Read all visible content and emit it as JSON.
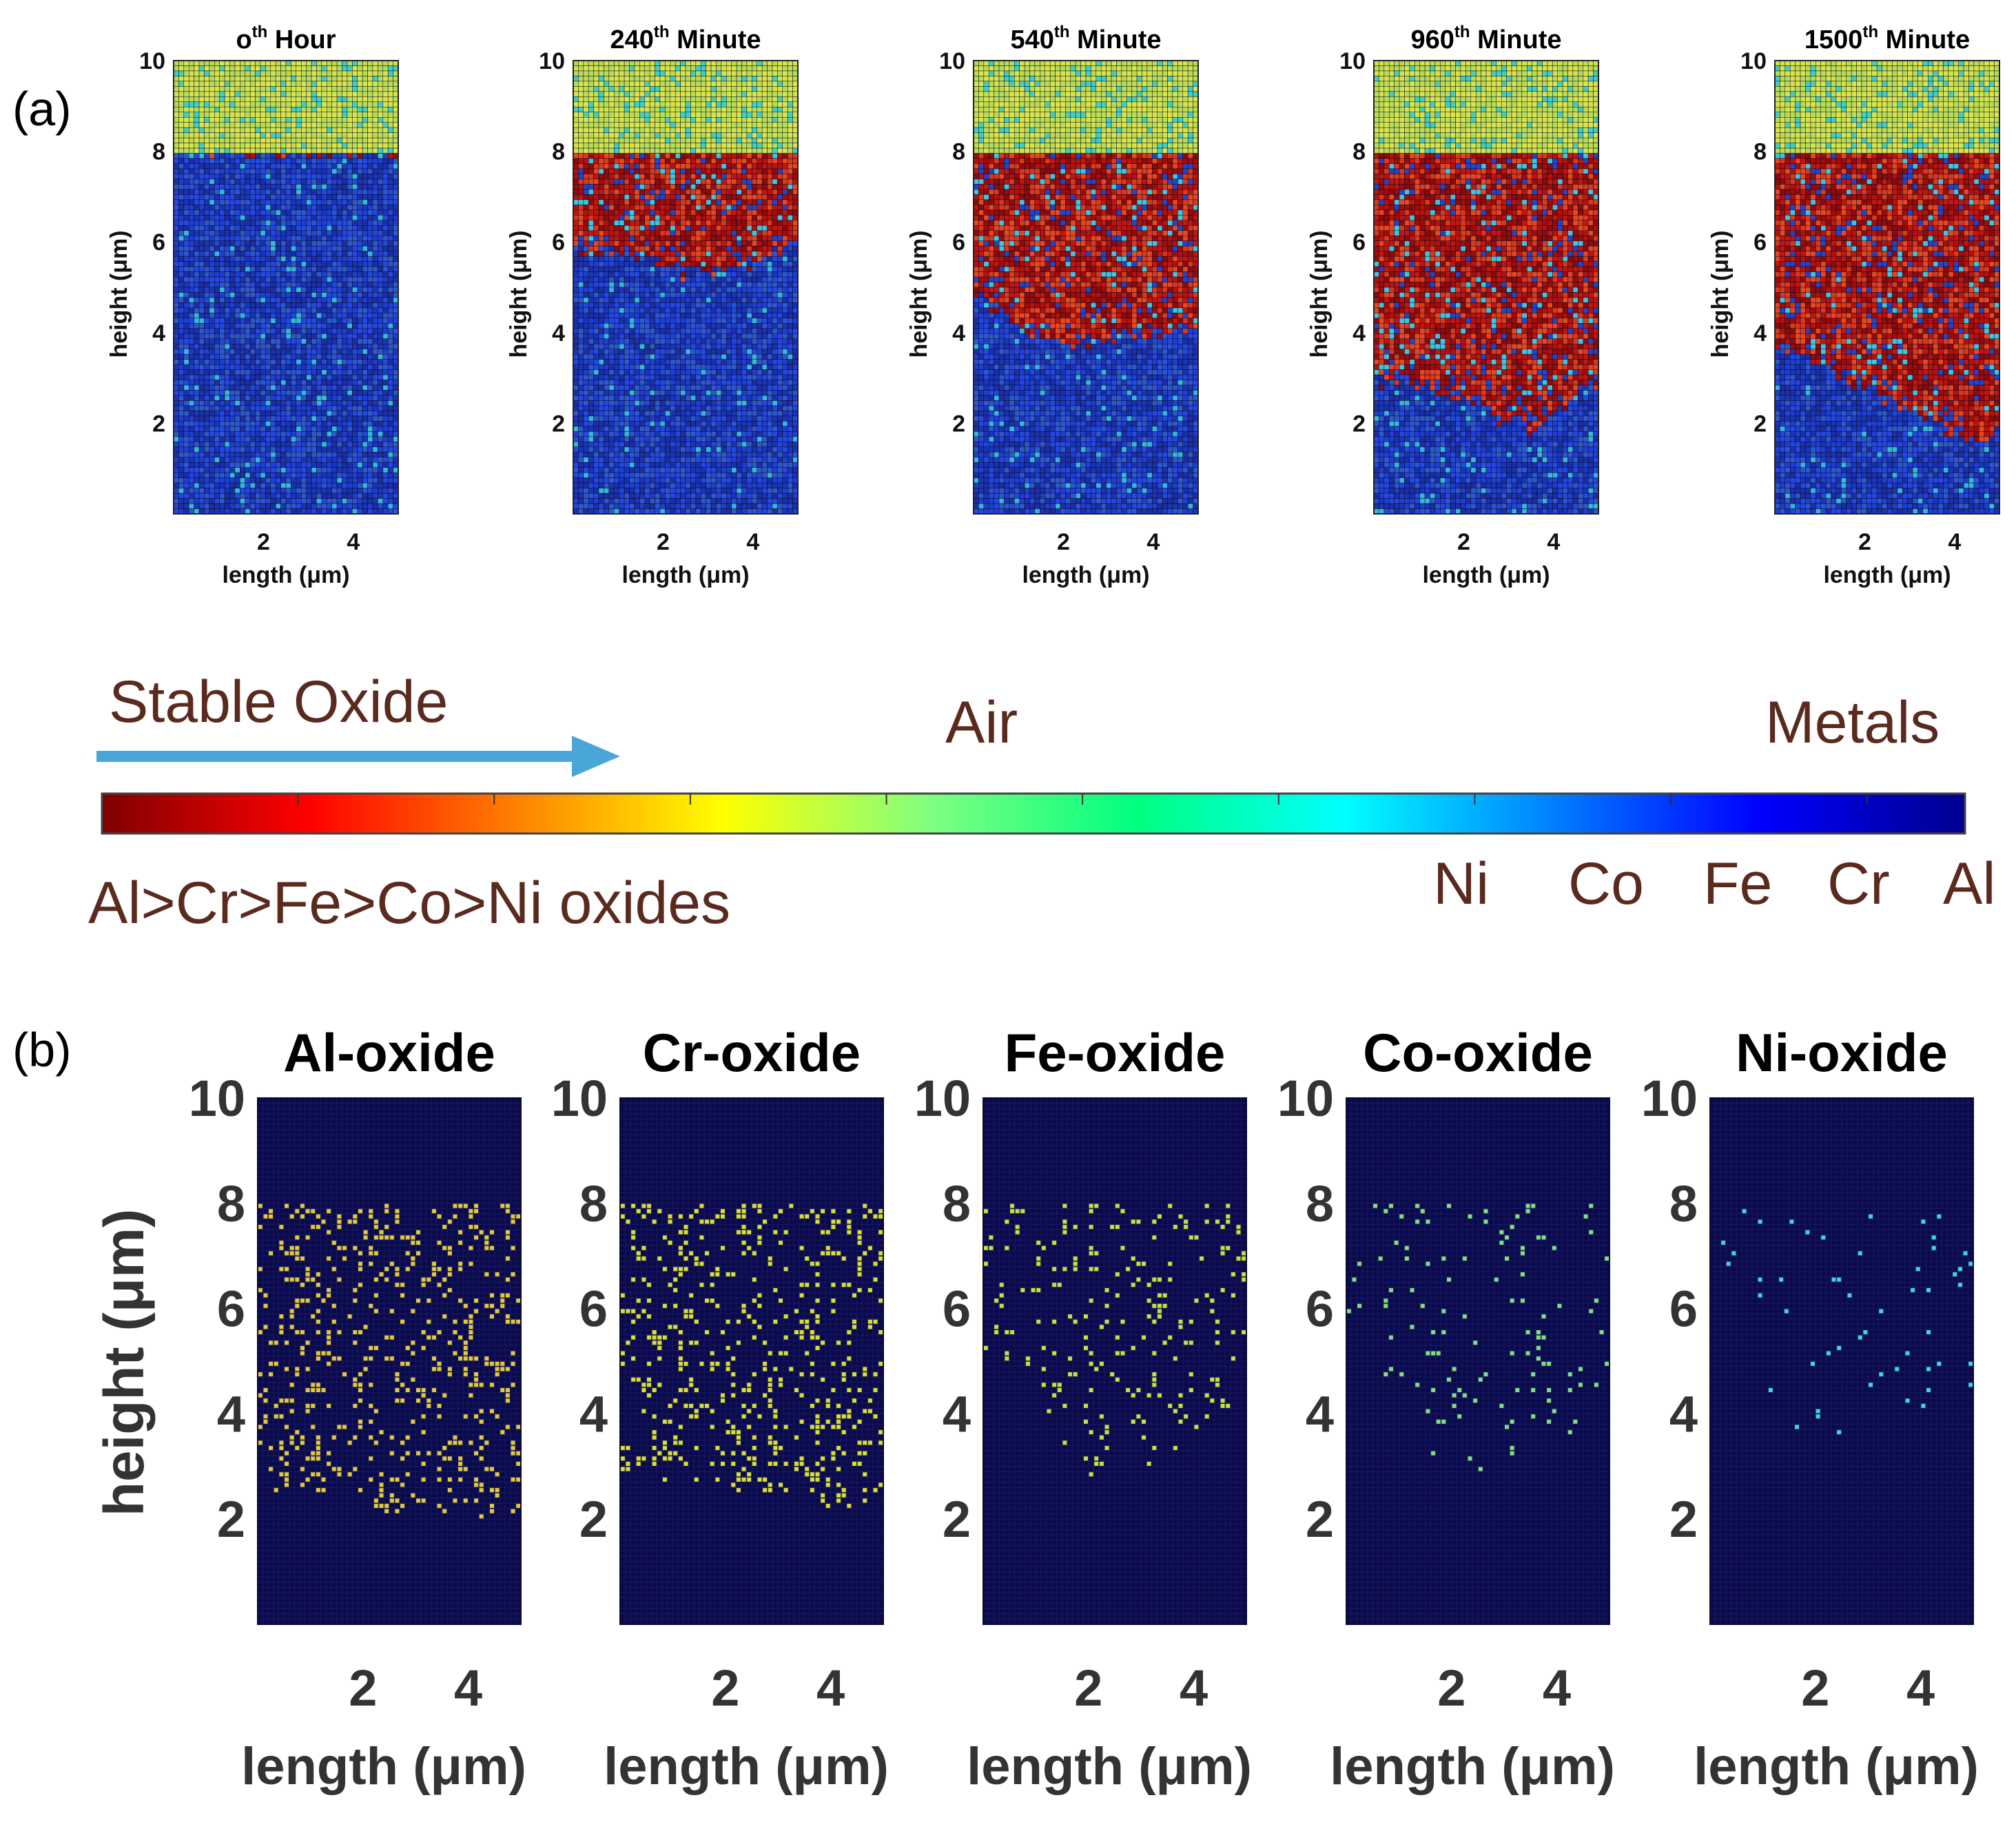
{
  "figure": {
    "panel_a_label": "(a)",
    "panel_b_label": "(b)"
  },
  "chart_data": [
    {
      "type": "heatmap",
      "panel": "a",
      "title_parts": [
        "o",
        "th",
        " Hour"
      ],
      "xlabel": "length (μm)",
      "ylabel": "height (μm)",
      "xlim": [
        0,
        5
      ],
      "ylim": [
        0,
        10
      ],
      "xticks": [
        2,
        4
      ],
      "yticks": [
        2,
        4,
        6,
        8,
        10
      ],
      "air_above": 8,
      "oxide_front": [
        8,
        8,
        8,
        8,
        8,
        8,
        8,
        8,
        8,
        8,
        8
      ]
    },
    {
      "type": "heatmap",
      "panel": "a",
      "title_parts": [
        "240",
        "th",
        " Minute"
      ],
      "xlabel": "length (μm)",
      "ylabel": "height (μm)",
      "xlim": [
        0,
        5
      ],
      "ylim": [
        0,
        10
      ],
      "xticks": [
        2,
        4
      ],
      "yticks": [
        2,
        4,
        6,
        8,
        10
      ],
      "air_above": 8,
      "oxide_front": [
        5.9,
        5.8,
        5.8,
        5.6,
        5.5,
        5.3,
        5.3,
        5.5,
        5.6,
        5.8,
        5.9
      ]
    },
    {
      "type": "heatmap",
      "panel": "a",
      "title_parts": [
        "540",
        "th",
        " Minute"
      ],
      "xlabel": "length (μm)",
      "ylabel": "height (μm)",
      "xlim": [
        0,
        5
      ],
      "ylim": [
        0,
        10
      ],
      "xticks": [
        2,
        4
      ],
      "yticks": [
        2,
        4,
        6,
        8,
        10
      ],
      "air_above": 8,
      "oxide_front": [
        4.9,
        4.5,
        4.1,
        3.9,
        3.9,
        3.8,
        3.9,
        4.0,
        4.0,
        4.0,
        4.1
      ]
    },
    {
      "type": "heatmap",
      "panel": "a",
      "title_parts": [
        "960",
        "th",
        " Minute"
      ],
      "xlabel": "length (μm)",
      "ylabel": "height (μm)",
      "xlim": [
        0,
        5
      ],
      "ylim": [
        0,
        10
      ],
      "xticks": [
        2,
        4
      ],
      "yticks": [
        2,
        4,
        6,
        8,
        10
      ],
      "air_above": 8,
      "oxide_front": [
        3.0,
        3.0,
        2.9,
        2.8,
        2.6,
        2.3,
        2.1,
        1.9,
        2.2,
        2.6,
        2.9
      ]
    },
    {
      "type": "heatmap",
      "panel": "a",
      "title_parts": [
        "1500",
        "th",
        " Minute"
      ],
      "xlabel": "length (μm)",
      "ylabel": "height (μm)",
      "xlim": [
        0,
        5
      ],
      "ylim": [
        0,
        10
      ],
      "xticks": [
        2,
        4
      ],
      "yticks": [
        2,
        4,
        6,
        8,
        10
      ],
      "air_above": 8,
      "oxide_front": [
        3.7,
        3.5,
        3.3,
        3.1,
        2.8,
        2.5,
        2.3,
        2.1,
        1.8,
        1.6,
        1.9
      ]
    },
    {
      "type": "scatter",
      "panel": "b",
      "title": "Al-oxide",
      "dot_color": "#e2c93a",
      "density": 0.17,
      "bottom_front": [
        2.6,
        2.5,
        2.6,
        2.4,
        2.3,
        2.1,
        2.2,
        2.0,
        1.8,
        2.0,
        2.2
      ],
      "xlabel": "length (μm)",
      "ylabel": "height (μm)",
      "xlim": [
        0,
        5
      ],
      "ylim": [
        0,
        10
      ],
      "xticks": [
        2,
        4
      ],
      "yticks": [
        2,
        4,
        6,
        8,
        10
      ]
    },
    {
      "type": "scatter",
      "panel": "b",
      "title": "Cr-oxide",
      "dot_color": "#d8e02e",
      "density": 0.16,
      "bottom_front": [
        2.8,
        2.8,
        2.7,
        2.6,
        2.5,
        2.4,
        2.4,
        2.3,
        2.1,
        2.3,
        2.4
      ],
      "xlabel": "length (μm)",
      "ylabel": "height (μm)",
      "xlim": [
        0,
        5
      ],
      "ylim": [
        0,
        10
      ],
      "xticks": [
        2,
        4
      ],
      "yticks": [
        2,
        4,
        6,
        8,
        10
      ]
    },
    {
      "type": "scatter",
      "panel": "b",
      "title": "Fe-oxide",
      "dot_color": "#c5e23a",
      "density": 0.1,
      "bottom_front": [
        5.2,
        5.0,
        4.6,
        3.4,
        2.6,
        2.6,
        2.9,
        3.2,
        3.5,
        3.9,
        4.5
      ],
      "xlabel": "length (μm)",
      "ylabel": "height (μm)",
      "xlim": [
        0,
        5
      ],
      "ylim": [
        0,
        10
      ],
      "xticks": [
        2,
        4
      ],
      "yticks": [
        2,
        4,
        6,
        8,
        10
      ]
    },
    {
      "type": "scatter",
      "panel": "b",
      "title": "Co-oxide",
      "dot_color": "#7fe07a",
      "density": 0.05,
      "bottom_front": [
        6.0,
        5.0,
        4.2,
        3.4,
        2.8,
        2.6,
        2.9,
        3.2,
        3.5,
        3.8,
        4.2
      ],
      "xlabel": "length (μm)",
      "ylabel": "height (μm)",
      "xlim": [
        0,
        5
      ],
      "ylim": [
        0,
        10
      ],
      "xticks": [
        2,
        4
      ],
      "yticks": [
        2,
        4,
        6,
        8,
        10
      ]
    },
    {
      "type": "scatter",
      "panel": "b",
      "title": "Ni-oxide",
      "dot_color": "#3fd6d6",
      "density": 0.03,
      "bottom_front": [
        6.5,
        5.5,
        4.5,
        3.8,
        3.3,
        3.1,
        3.3,
        3.6,
        3.8,
        4.0,
        4.3
      ],
      "xlabel": "length (μm)",
      "ylabel": "height (μm)",
      "xlim": [
        0,
        5
      ],
      "ylim": [
        0,
        10
      ],
      "xticks": [
        2,
        4
      ],
      "yticks": [
        2,
        4,
        6,
        8,
        10
      ]
    }
  ],
  "colorbar": {
    "stable_oxide_label": "Stable Oxide",
    "air_label": "Air",
    "metals_label": "Metals",
    "oxides_order_label": "Al>Cr>Fe>Co>Ni oxides",
    "metal_labels": [
      "Ni",
      "Co",
      "Fe",
      "Cr",
      "Al"
    ],
    "stops": [
      "#7f0000",
      "#ff0000",
      "#ff8000",
      "#ffff00",
      "#80ff80",
      "#00ff80",
      "#00ffff",
      "#0080ff",
      "#0000ff",
      "#00008f"
    ],
    "label_color": "#5a2a1e",
    "arrow_color": "#4aa6d8"
  }
}
